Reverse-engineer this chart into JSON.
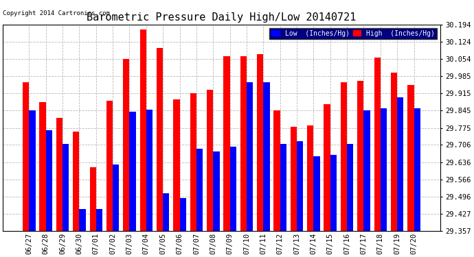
{
  "title": "Barometric Pressure Daily High/Low 20140721",
  "copyright": "Copyright 2014 Cartronics.com",
  "legend_low": "Low  (Inches/Hg)",
  "legend_high": "High  (Inches/Hg)",
  "dates": [
    "06/27",
    "06/28",
    "06/29",
    "06/30",
    "07/01",
    "07/02",
    "07/03",
    "07/04",
    "07/05",
    "07/06",
    "07/07",
    "07/08",
    "07/09",
    "07/10",
    "07/11",
    "07/12",
    "07/13",
    "07/14",
    "07/15",
    "07/16",
    "07/17",
    "07/18",
    "07/19",
    "07/20"
  ],
  "low_values": [
    29.845,
    29.765,
    29.71,
    29.445,
    29.445,
    29.625,
    29.84,
    29.85,
    29.51,
    29.49,
    29.69,
    29.68,
    29.7,
    29.96,
    29.96,
    29.71,
    29.72,
    29.66,
    29.665,
    29.71,
    29.845,
    29.855,
    29.9,
    29.855
  ],
  "high_values": [
    29.96,
    29.88,
    29.815,
    29.76,
    29.615,
    29.885,
    30.055,
    30.175,
    30.1,
    29.89,
    29.915,
    29.93,
    30.065,
    30.065,
    30.075,
    29.845,
    29.78,
    29.785,
    29.87,
    29.96,
    29.965,
    30.06,
    30.0,
    29.95
  ],
  "ylim_min": 29.357,
  "ylim_max": 30.194,
  "yticks": [
    29.357,
    29.427,
    29.496,
    29.566,
    29.636,
    29.706,
    29.775,
    29.845,
    29.915,
    29.985,
    30.054,
    30.124,
    30.194
  ],
  "low_color": "#0000ff",
  "high_color": "#ff0000",
  "bg_color": "#ffffff",
  "grid_color": "#b0b0b0",
  "title_fontsize": 11,
  "tick_fontsize": 7.5,
  "bar_width": 0.38
}
